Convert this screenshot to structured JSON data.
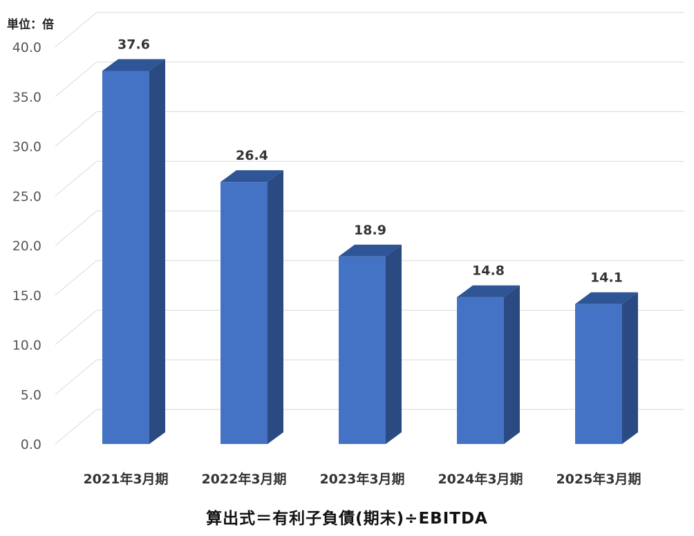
{
  "chart_data": {
    "type": "bar",
    "unit_label": "単位：倍",
    "categories": [
      "2021年3月期",
      "2022年3月期",
      "2023年3月期",
      "2024年3月期",
      "2025年3月期"
    ],
    "values": [
      37.6,
      26.4,
      18.9,
      14.8,
      14.1
    ],
    "value_labels": [
      "37.6",
      "26.4",
      "18.9",
      "14.8",
      "14.1"
    ],
    "ylim": [
      0,
      40
    ],
    "yticks": [
      "0.0",
      "5.0",
      "10.0",
      "15.0",
      "20.0",
      "25.0",
      "30.0",
      "35.0",
      "40.0"
    ],
    "grid": true,
    "style": "3d-column",
    "colors": {
      "front": "#4472C4",
      "side": "#2C4A82",
      "top": "#2F5597"
    },
    "footnote": "算出式＝有利子負債(期末)÷EBITDA"
  }
}
